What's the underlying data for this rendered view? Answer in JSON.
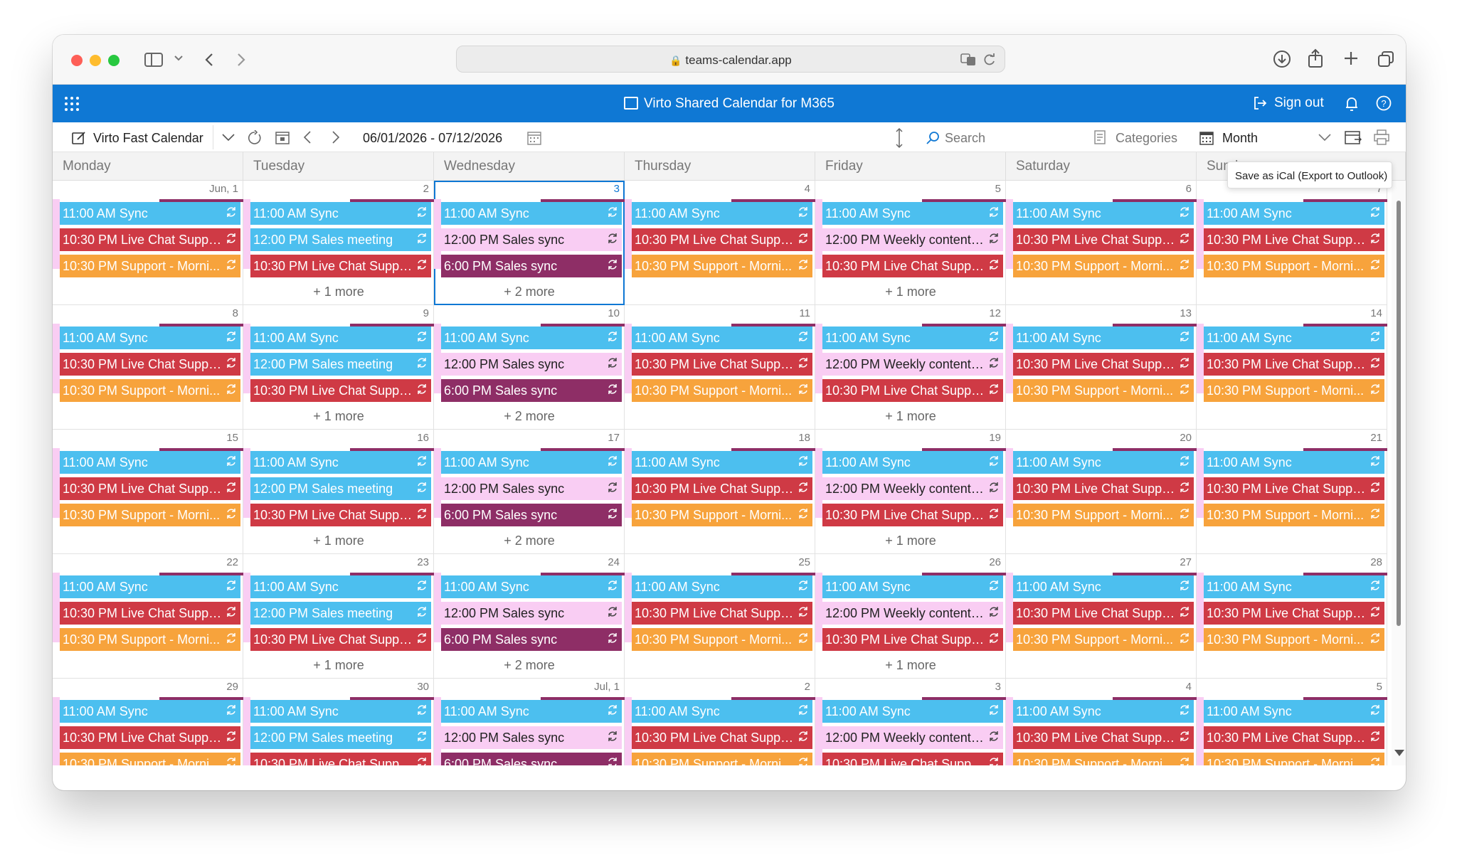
{
  "browser": {
    "url": "teams-calendar.app"
  },
  "app": {
    "title": "Virto Shared Calendar for M365",
    "sign_out": "Sign out"
  },
  "toolbar": {
    "calendar_name": "Virto Fast Calendar",
    "date_range": "06/01/2026 - 07/12/2026",
    "search_placeholder": "Search",
    "categories": "Categories",
    "view": "Month",
    "tooltip": "Save as iCal (Export to Outlook)"
  },
  "day_headers": [
    "Monday",
    "Tuesday",
    "Wednesday",
    "Thursday",
    "Friday",
    "Saturday",
    "Sunday"
  ],
  "colors": {
    "cyan": "#4cbfef",
    "red": "#cf3a45",
    "orange": "#f7a33c",
    "pink": "#f9cdf3",
    "plum": "#8e2e66",
    "accent": "#0f78d4"
  },
  "weeks": [
    {
      "days": [
        "Jun, 1",
        "2",
        "3",
        "4",
        "5",
        "6",
        "7"
      ]
    },
    {
      "days": [
        "8",
        "9",
        "10",
        "11",
        "12",
        "13",
        "14"
      ]
    },
    {
      "days": [
        "15",
        "16",
        "17",
        "18",
        "19",
        "20",
        "21"
      ]
    },
    {
      "days": [
        "22",
        "23",
        "24",
        "25",
        "26",
        "27",
        "28"
      ]
    },
    {
      "days": [
        "29",
        "30",
        "Jul, 1",
        "2",
        "3",
        "4",
        "5"
      ]
    }
  ],
  "columns": [
    {
      "events": [
        {
          "label": "11:00 AM Sync",
          "color": "cyan"
        },
        {
          "label": "10:30 PM Live Chat Suppo...",
          "color": "red"
        },
        {
          "label": "10:30 PM Support - Morni...",
          "color": "orange"
        }
      ],
      "more": ""
    },
    {
      "events": [
        {
          "label": "11:00 AM Sync",
          "color": "cyan"
        },
        {
          "label": "12:00 PM Sales meeting",
          "color": "cyan"
        },
        {
          "label": "10:30 PM Live Chat Suppo...",
          "color": "red"
        }
      ],
      "more": "+ 1 more"
    },
    {
      "events": [
        {
          "label": "11:00 AM Sync",
          "color": "cyan"
        },
        {
          "label": "12:00 PM Sales sync",
          "color": "pink"
        },
        {
          "label": "6:00 PM Sales sync",
          "color": "plum"
        }
      ],
      "more": "+ 2 more"
    },
    {
      "events": [
        {
          "label": "11:00 AM Sync",
          "color": "cyan"
        },
        {
          "label": "10:30 PM Live Chat Suppo...",
          "color": "red"
        },
        {
          "label": "10:30 PM Support - Morni...",
          "color": "orange"
        }
      ],
      "more": ""
    },
    {
      "events": [
        {
          "label": "11:00 AM Sync",
          "color": "cyan"
        },
        {
          "label": "12:00 PM Weekly content ...",
          "color": "pink"
        },
        {
          "label": "10:30 PM Live Chat Suppo...",
          "color": "red"
        }
      ],
      "more": "+ 1 more"
    },
    {
      "events": [
        {
          "label": "11:00 AM Sync",
          "color": "cyan"
        },
        {
          "label": "10:30 PM Live Chat Suppo...",
          "color": "red"
        },
        {
          "label": "10:30 PM Support - Morni...",
          "color": "orange"
        }
      ],
      "more": ""
    },
    {
      "events": [
        {
          "label": "11:00 AM Sync",
          "color": "cyan"
        },
        {
          "label": "10:30 PM Live Chat Suppo...",
          "color": "red"
        },
        {
          "label": "10:30 PM Support - Morni...",
          "color": "orange"
        }
      ],
      "more": ""
    }
  ]
}
